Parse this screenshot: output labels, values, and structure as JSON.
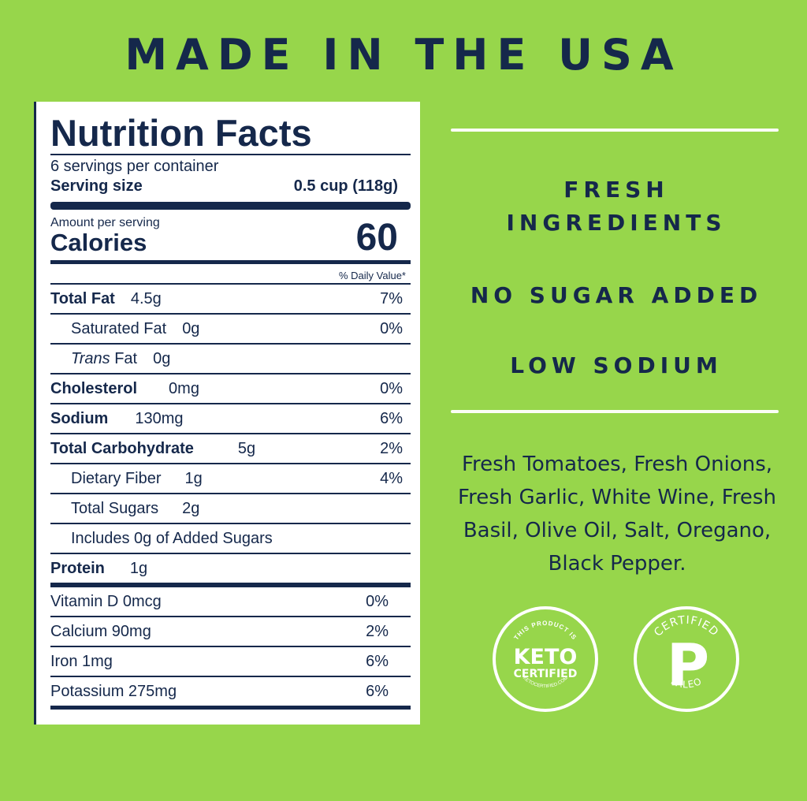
{
  "headline": "MADE IN THE USA",
  "nutrition": {
    "title": "Nutrition Facts",
    "servings_per_container": "6 servings per container",
    "serving_size_label": "Serving size",
    "serving_size_value": "0.5 cup (118g)",
    "amount_per_serving": "Amount per serving",
    "calories_label": "Calories",
    "calories_value": "60",
    "daily_value_header": "% Daily Value*",
    "rows": [
      {
        "name": "Total Fat",
        "amount": "4.5g",
        "dv": "7%"
      },
      {
        "name": "Saturated Fat",
        "amount": "0g",
        "dv": "0%"
      },
      {
        "name_italic": "Trans",
        "name": "Fat",
        "amount": "0g",
        "dv": ""
      },
      {
        "name": "Cholesterol",
        "amount": "0mg",
        "dv": "0%"
      },
      {
        "name": "Sodium",
        "amount": "130mg",
        "dv": "6%"
      },
      {
        "name": "Total Carbohydrate",
        "amount": "5g",
        "dv": "2%"
      },
      {
        "name": "Dietary Fiber",
        "amount": "1g",
        "dv": "4%"
      },
      {
        "name": "Total Sugars",
        "amount": "2g",
        "dv": ""
      },
      {
        "name": "Includes 0g of Added Sugars",
        "amount": "",
        "dv": ""
      },
      {
        "name": "Protein",
        "amount": "1g",
        "dv": ""
      }
    ],
    "vitamins": [
      {
        "name": "Vitamin D 0mcg",
        "dv": "0%"
      },
      {
        "name": "Calcium 90mg",
        "dv": "2%"
      },
      {
        "name": "Iron 1mg",
        "dv": "6%"
      },
      {
        "name": "Potassium 275mg",
        "dv": "6%"
      }
    ]
  },
  "claims": {
    "fresh_line1": "FRESH",
    "fresh_line2": "INGREDIENTS",
    "no_sugar": "NO SUGAR ADDED",
    "low_sodium": "LOW SODIUM"
  },
  "ingredients": "Fresh Tomatoes, Fresh Onions, Fresh Garlic, White Wine, Fresh Basil, Olive Oil, Salt, Oregano, Black Pepper.",
  "badges": {
    "keto_top": "THIS PRODUCT IS",
    "keto_main": "KETO",
    "keto_sub": "CERTIFIED",
    "keto_bottom": "KETOCERTIFIED.COM",
    "paleo_top": "CERTIFIED",
    "paleo_letter": "P",
    "paleo_bottom": "PALEO"
  },
  "colors": {
    "background": "#97d64b",
    "navy": "#15284b",
    "white": "#ffffff"
  }
}
